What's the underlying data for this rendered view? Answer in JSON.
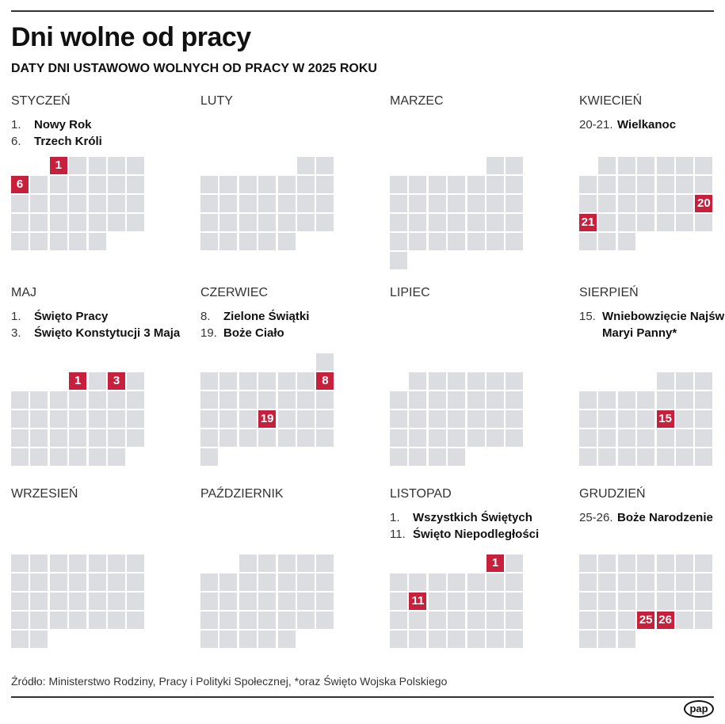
{
  "title": "Dni wolne od pracy",
  "subtitle": "DATY DNI USTAWOWO WOLNYCH OD PRACY W 2025 ROKU",
  "year": 2025,
  "colors": {
    "holiday": "#c8203c",
    "day": "#dcdde0"
  },
  "months": [
    {
      "name": "STYCZEŃ",
      "holidays": [
        {
          "num": "1.",
          "label": "Nowy Rok"
        },
        {
          "num": "6.",
          "label": "Trzech Króli"
        }
      ],
      "highlight": [
        1,
        6
      ]
    },
    {
      "name": "LUTY",
      "holidays": [],
      "highlight": []
    },
    {
      "name": "MARZEC",
      "holidays": [],
      "highlight": []
    },
    {
      "name": "KWIECIEŃ",
      "holidays": [
        {
          "num": "20-21.",
          "label": "Wielkanoc"
        }
      ],
      "highlight": [
        20,
        21
      ]
    },
    {
      "name": "MAJ",
      "holidays": [
        {
          "num": "1.",
          "label": "Święto Pracy"
        },
        {
          "num": "3.",
          "label": "Święto Konstytucji 3 Maja"
        }
      ],
      "highlight": [
        1,
        3
      ]
    },
    {
      "name": "CZERWIEC",
      "holidays": [
        {
          "num": "8.",
          "label": "Zielone Świątki"
        },
        {
          "num": "19.",
          "label": "Boże Ciało"
        }
      ],
      "highlight": [
        8,
        19
      ]
    },
    {
      "name": "LIPIEC",
      "holidays": [],
      "highlight": []
    },
    {
      "name": "SIERPIEŃ",
      "holidays": [
        {
          "num": "15.",
          "label": "Wniebowzięcie Najświętszej Maryi Panny*"
        }
      ],
      "highlight": [
        15
      ]
    },
    {
      "name": "WRZESIEŃ",
      "holidays": [],
      "highlight": []
    },
    {
      "name": "PAŹDZIERNIK",
      "holidays": [],
      "highlight": []
    },
    {
      "name": "LISTOPAD",
      "holidays": [
        {
          "num": "1.",
          "label": "Wszystkich Świętych"
        },
        {
          "num": "11.",
          "label": "Święto Niepodległości"
        }
      ],
      "highlight": [
        1,
        11
      ]
    },
    {
      "name": "GRUDZIEŃ",
      "holidays": [
        {
          "num": "25-26.",
          "label": "Boże Narodzenie"
        }
      ],
      "highlight": [
        25,
        26
      ]
    }
  ],
  "source": "Źródło: Ministerstwo Rodziny, Pracy i Polityki Społecznej, *oraz Święto Wojska Polskiego",
  "logo": "pap"
}
